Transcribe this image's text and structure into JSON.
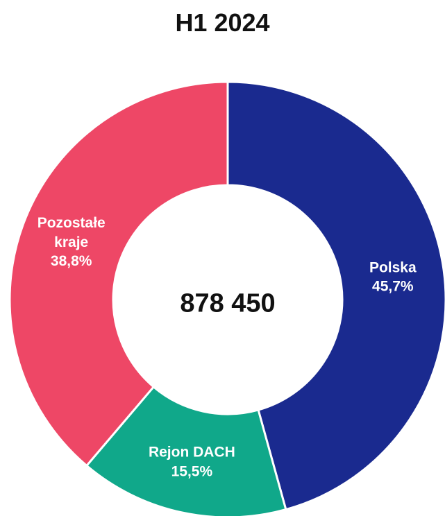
{
  "chart_data": {
    "type": "donut",
    "title": "H1 2024",
    "center_label": "878 450",
    "categories": [
      "Polska",
      "Rejon DACH",
      "Pozostałe kraje"
    ],
    "values": [
      45.7,
      15.5,
      38.8
    ],
    "value_labels": [
      "45,7%",
      "15,5%",
      "38,8%"
    ],
    "colors": [
      "#1a2a8f",
      "#10a88a",
      "#ee4766"
    ]
  }
}
